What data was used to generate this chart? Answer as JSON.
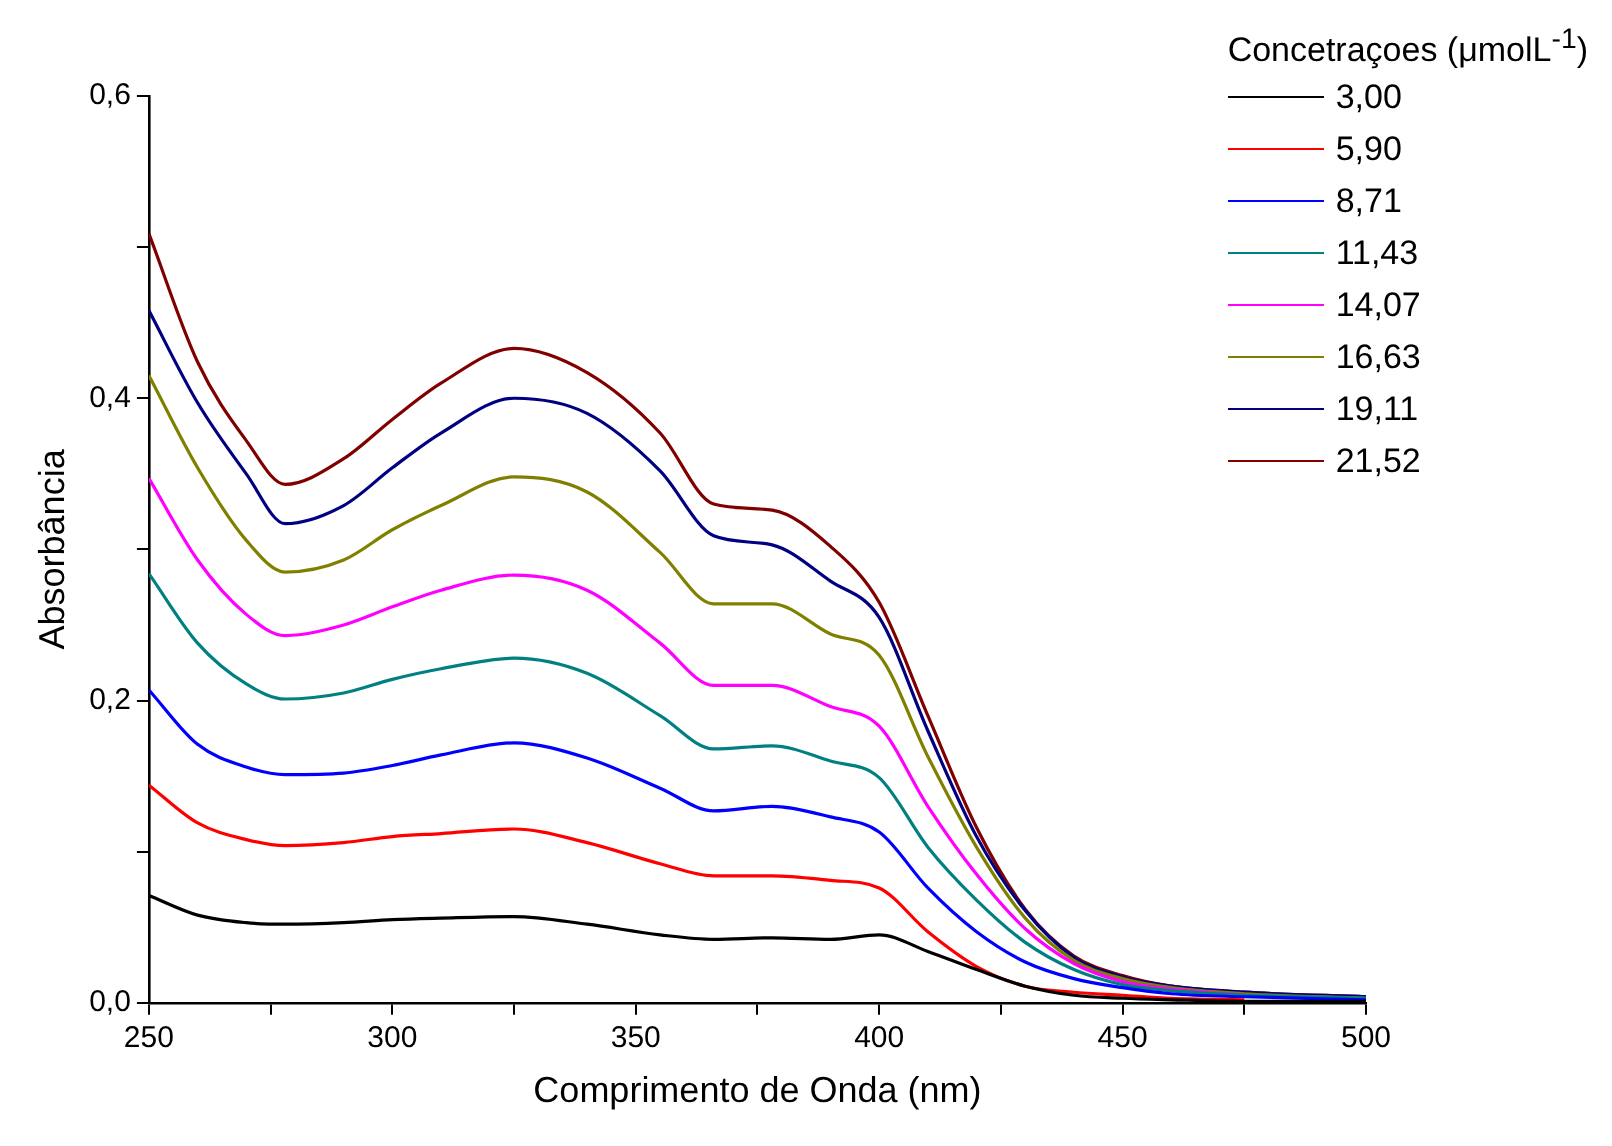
{
  "chart_data": {
    "type": "line",
    "xlabel": "Comprimento de Onda (nm)",
    "ylabel": "Absorbância",
    "legend_title": "Concetraçoes (μmolL$^{-1}$)",
    "legend": "top right",
    "grid": false,
    "marker": "none",
    "line_style": "solid",
    "x": [
      250,
      260,
      270,
      278,
      290,
      300,
      310,
      325,
      340,
      355,
      366,
      378,
      390,
      400,
      410,
      420,
      430,
      440,
      450,
      460,
      475,
      500
    ],
    "xlim": [
      250,
      500
    ],
    "xticks": [
      {
        "value": 250,
        "label": "250"
      },
      {
        "value": 275,
        "label": null
      },
      {
        "value": 300,
        "label": "300"
      },
      {
        "value": 325,
        "label": null
      },
      {
        "value": 350,
        "label": "350"
      },
      {
        "value": 375,
        "label": null
      },
      {
        "value": 400,
        "label": "400"
      },
      {
        "value": 425,
        "label": null
      },
      {
        "value": 450,
        "label": "450"
      },
      {
        "value": 475,
        "label": null
      },
      {
        "value": 500,
        "label": "500"
      }
    ],
    "ylim": [
      0,
      0.6
    ],
    "yticks": [
      {
        "value": 0,
        "label": "0,0"
      },
      {
        "value": 0.1,
        "label": null
      },
      {
        "value": 0.2,
        "label": "0,2"
      },
      {
        "value": 0.3,
        "label": null
      },
      {
        "value": 0.4,
        "label": "0,4"
      },
      {
        "value": 0.5,
        "label": null
      },
      {
        "value": 0.6,
        "label": "0,6"
      }
    ],
    "series": [
      {
        "name": "3,00",
        "color": "#000000",
        "values": [
          0.071,
          0.058,
          0.053,
          0.052,
          0.053,
          0.055,
          0.056,
          0.057,
          0.052,
          0.045,
          0.042,
          0.043,
          0.042,
          0.045,
          0.034,
          0.022,
          0.011,
          0.005,
          0.003,
          0.002,
          0.001,
          0.001
        ]
      },
      {
        "name": "5,90",
        "color": "#ff0000",
        "values": [
          0.144,
          0.119,
          0.108,
          0.104,
          0.106,
          0.11,
          0.112,
          0.115,
          0.106,
          0.092,
          0.084,
          0.084,
          0.081,
          0.076,
          0.047,
          0.024,
          0.011,
          0.007,
          0.005,
          0.003,
          0.002,
          null
        ]
      },
      {
        "name": "8,71",
        "color": "#0000ff",
        "values": [
          0.207,
          0.171,
          0.156,
          0.151,
          0.152,
          0.157,
          0.164,
          0.172,
          0.162,
          0.142,
          0.127,
          0.13,
          0.123,
          0.113,
          0.076,
          0.047,
          0.027,
          0.016,
          0.01,
          0.006,
          0.004,
          0.002
        ]
      },
      {
        "name": "11,43",
        "color": "#008080",
        "values": [
          0.284,
          0.238,
          0.211,
          0.201,
          0.205,
          0.214,
          0.221,
          0.228,
          0.218,
          0.19,
          0.168,
          0.17,
          0.16,
          0.149,
          0.103,
          0.068,
          0.04,
          0.022,
          0.012,
          0.008,
          0.005,
          0.003
        ]
      },
      {
        "name": "14,07",
        "color": "#ff00ff",
        "values": [
          0.347,
          0.293,
          0.257,
          0.243,
          0.25,
          0.262,
          0.273,
          0.283,
          0.273,
          0.238,
          0.21,
          0.21,
          0.196,
          0.183,
          0.13,
          0.085,
          0.049,
          0.026,
          0.014,
          0.009,
          0.005,
          null
        ]
      },
      {
        "name": "16,63",
        "color": "#808000",
        "values": [
          0.415,
          0.354,
          0.306,
          0.285,
          0.293,
          0.313,
          0.329,
          0.348,
          0.338,
          0.298,
          0.264,
          0.264,
          0.244,
          0.23,
          0.163,
          0.103,
          0.056,
          0.028,
          0.016,
          0.01,
          0.006,
          0.003
        ]
      },
      {
        "name": "19,11",
        "color": "#000080",
        "values": [
          0.458,
          0.397,
          0.35,
          0.317,
          0.329,
          0.354,
          0.377,
          0.4,
          0.39,
          0.352,
          0.309,
          0.303,
          0.279,
          0.255,
          0.18,
          0.11,
          0.061,
          0.03,
          0.017,
          0.011,
          0.007,
          0.004
        ]
      },
      {
        "name": "21,52",
        "color": "#800000",
        "values": [
          0.509,
          0.424,
          0.372,
          0.343,
          0.36,
          0.386,
          0.41,
          0.433,
          0.417,
          0.377,
          0.33,
          0.326,
          0.302,
          0.265,
          0.19,
          0.116,
          0.062,
          0.031,
          0.018,
          0.011,
          0.007,
          0.004
        ]
      }
    ]
  }
}
